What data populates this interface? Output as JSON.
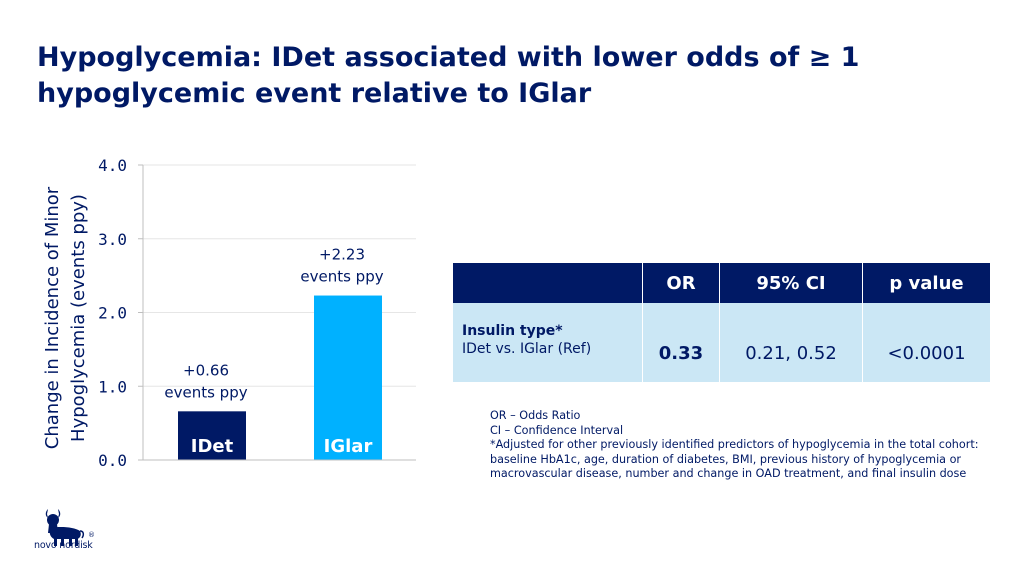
{
  "title": "Hypoglycemia: IDet associated with lower odds of ≥ 1 hypoglycemic event relative to IGlar",
  "chart_data": {
    "type": "bar",
    "categories": [
      "IDet",
      "IGlar"
    ],
    "values": [
      0.66,
      2.23
    ],
    "data_labels": [
      [
        "+0.66",
        "events ppy"
      ],
      [
        "+2.23",
        "events ppy"
      ]
    ],
    "ylabel_lines": [
      "Change in Incidence of Minor",
      "Hypoglycemia (events ppy)"
    ],
    "ylim": [
      0,
      4
    ],
    "ytick_values": [
      0,
      1,
      2,
      3,
      4
    ],
    "ytick_labels": [
      "0.0",
      "1.0",
      "2.0",
      "3.0",
      "4.0"
    ],
    "grid": true,
    "colors": [
      "#001965",
      "#00b1ff"
    ]
  },
  "table": {
    "headers": [
      "",
      "OR",
      "95% CI",
      "p value"
    ],
    "row_title": "Insulin type*",
    "row_sub": "IDet vs. IGlar (Ref)",
    "values": [
      "0.33",
      "0.21, 0.52",
      "<0.0001"
    ]
  },
  "notes": [
    "OR – Odds Ratio",
    "CI – Confidence Interval",
    "*Adjusted for other previously identified predictors of hypoglycemia in the total cohort: baseline HbA1c, age, duration of diabetes, BMI, previous history of hypoglycemia or macrovascular disease, number and change in OAD treatment, and final insulin dose"
  ],
  "logo": {
    "text": "novo nordisk",
    "reg": "®"
  },
  "colors": {
    "navy": "#001965",
    "bright_blue": "#00b1ff",
    "table_row": "#cbe7f5"
  }
}
